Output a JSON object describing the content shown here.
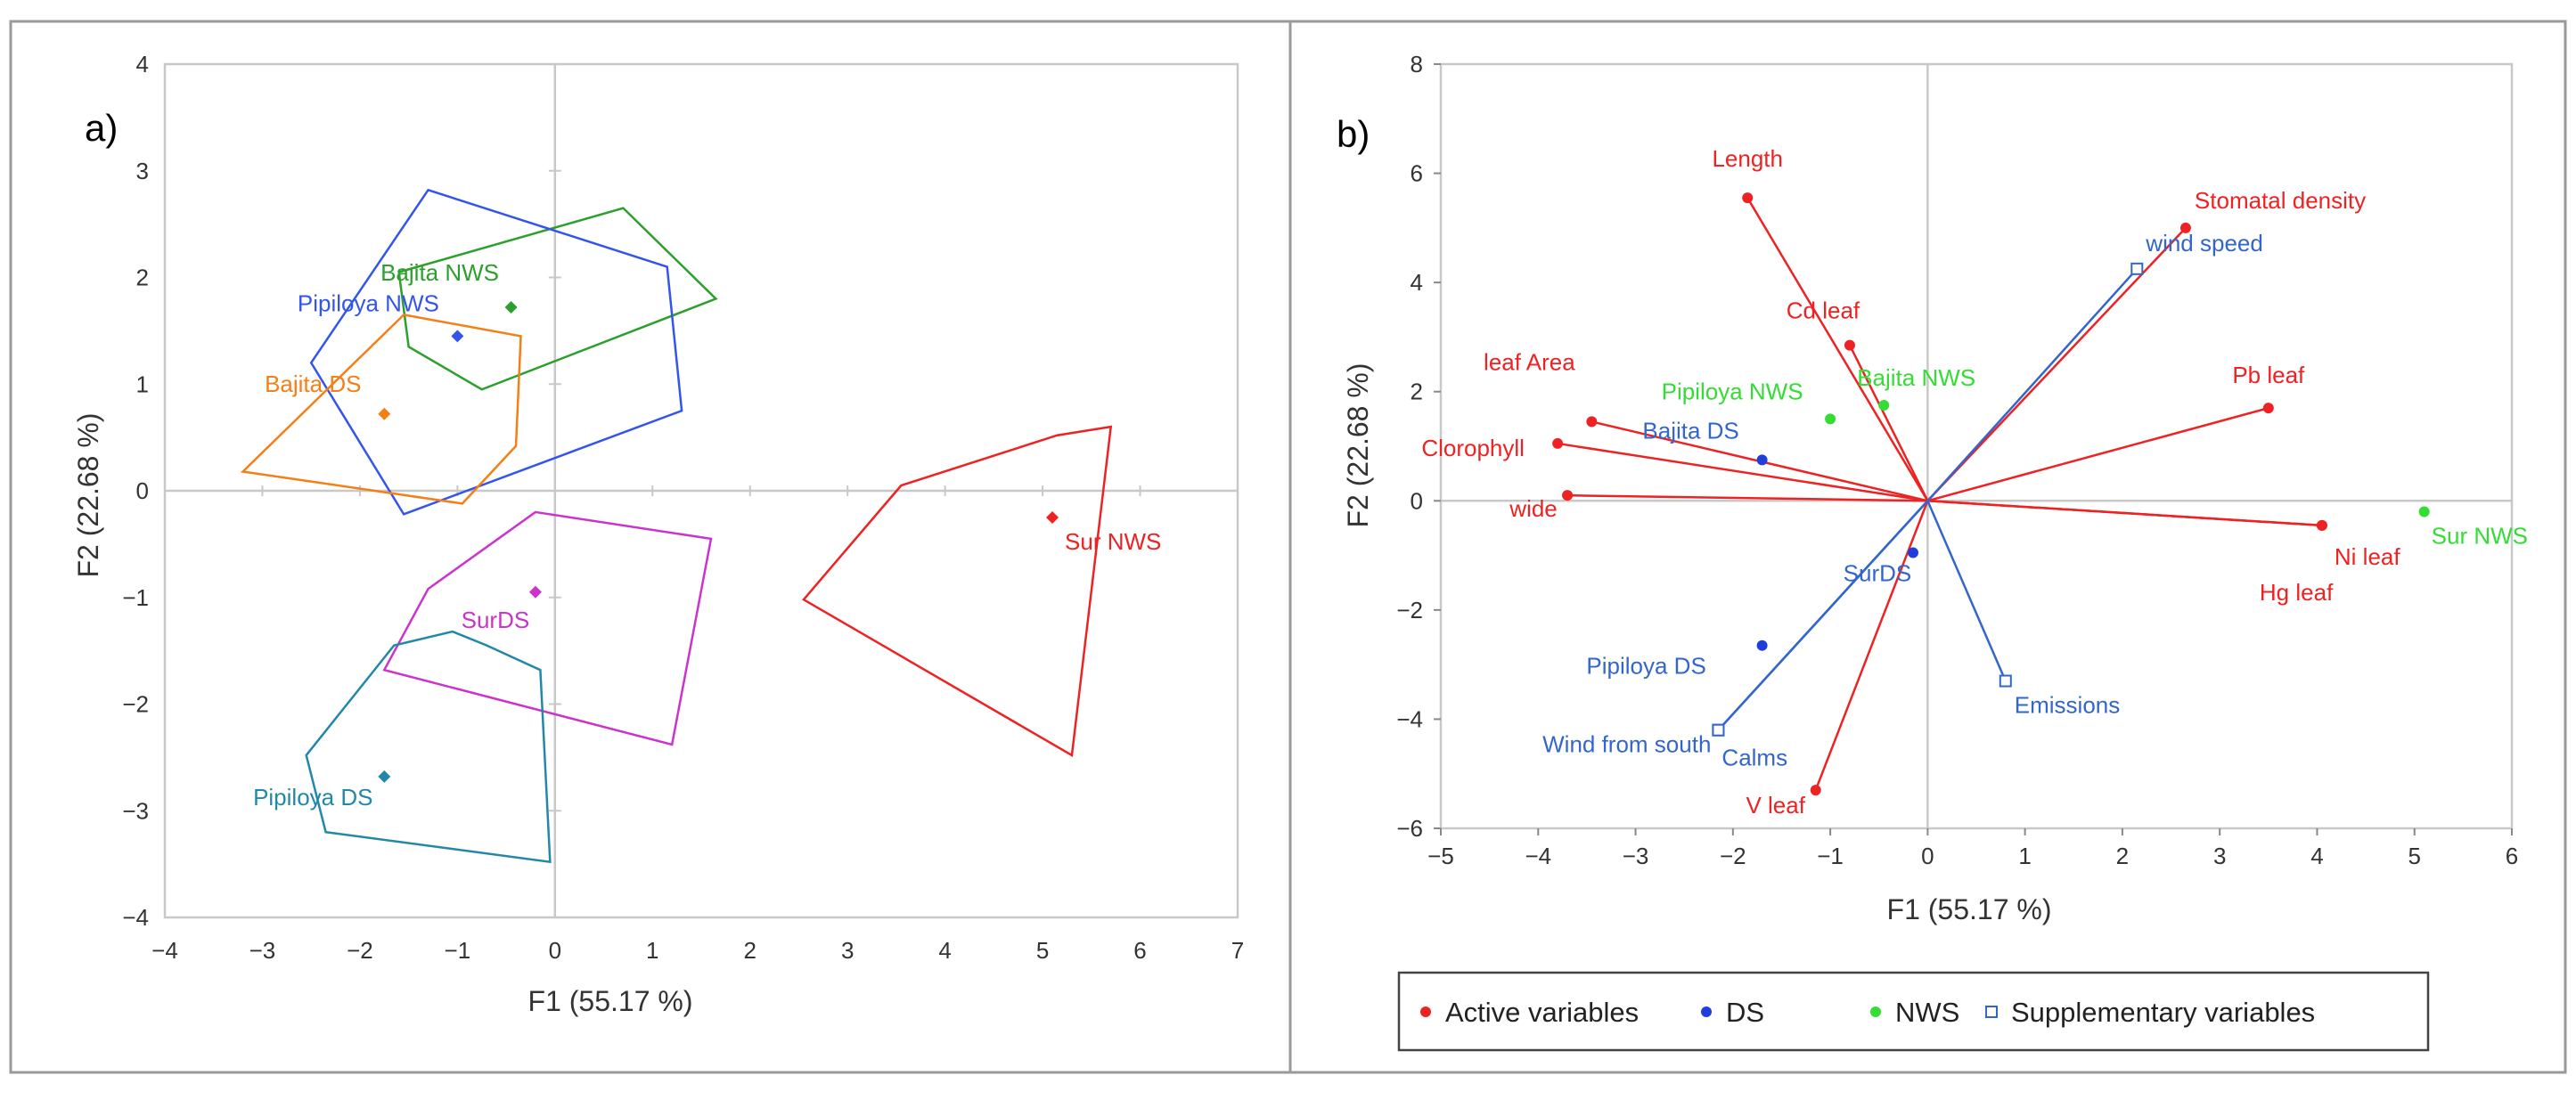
{
  "chart_data": [
    {
      "panel": "a)",
      "type": "scatter",
      "xlabel": "F1 (55.17 %)",
      "ylabel": "F2 (22.68 %)",
      "xlim": [
        -4,
        7
      ],
      "ylim": [
        -4,
        4
      ],
      "xticks": [
        "−4",
        "−3",
        "−2",
        "−1",
        "0",
        "1",
        "2",
        "3",
        "4",
        "5",
        "6",
        "7"
      ],
      "yticks": [
        "−4",
        "−3",
        "−2",
        "−1",
        "0",
        "1",
        "2",
        "3",
        "4"
      ],
      "series": [
        {
          "name": "Bajita NWS",
          "color": "#2ca02c",
          "point": [
            -0.45,
            1.72
          ],
          "hull": [
            [
              -1.6,
              2.05
            ],
            [
              0.7,
              2.65
            ],
            [
              1.65,
              1.8
            ],
            [
              -0.75,
              0.95
            ],
            [
              -1.5,
              1.35
            ]
          ]
        },
        {
          "name": "Pipiloya NWS",
          "color": "#3355ee",
          "point": [
            -1.0,
            1.45
          ],
          "hull": [
            [
              -1.3,
              2.82
            ],
            [
              1.15,
              2.1
            ],
            [
              1.3,
              0.75
            ],
            [
              -1.55,
              -0.22
            ],
            [
              -2.5,
              1.2
            ]
          ]
        },
        {
          "name": "Bajita DS",
          "color": "#f57f17",
          "point": [
            -1.75,
            0.72
          ],
          "hull": [
            [
              -1.55,
              1.65
            ],
            [
              -0.35,
              1.45
            ],
            [
              -0.4,
              0.42
            ],
            [
              -0.95,
              -0.12
            ],
            [
              -3.2,
              0.18
            ]
          ]
        },
        {
          "name": "Sur NWS",
          "color": "#ee2222",
          "point": [
            5.1,
            -0.25
          ],
          "hull": [
            [
              3.55,
              0.05
            ],
            [
              5.15,
              0.52
            ],
            [
              5.7,
              0.6
            ],
            [
              5.3,
              -2.48
            ],
            [
              2.55,
              -1.02
            ]
          ]
        },
        {
          "name": "SurDS",
          "color": "#cc33cc",
          "point": [
            -0.2,
            -0.95
          ],
          "hull": [
            [
              -0.2,
              -0.2
            ],
            [
              1.6,
              -0.45
            ],
            [
              1.2,
              -2.38
            ],
            [
              -1.75,
              -1.68
            ],
            [
              -1.3,
              -0.92
            ]
          ]
        },
        {
          "name": "Pipiloya DS",
          "color": "#2288aa",
          "point": [
            -1.75,
            -2.68
          ],
          "hull": [
            [
              -1.05,
              -1.32
            ],
            [
              -0.7,
              -1.45
            ],
            [
              -0.15,
              -1.68
            ],
            [
              -0.05,
              -3.48
            ],
            [
              -2.35,
              -3.2
            ],
            [
              -2.55,
              -2.48
            ],
            [
              -1.65,
              -1.45
            ]
          ]
        }
      ]
    },
    {
      "panel": "b)",
      "type": "scatter",
      "xlabel": "F1 (55.17 %)",
      "ylabel": "F2 (22.68 %)",
      "xlim": [
        -5,
        6
      ],
      "ylim": [
        -6,
        8
      ],
      "xticks": [
        "−5",
        "−4",
        "−3",
        "−2",
        "−1",
        "0",
        "1",
        "2",
        "3",
        "4",
        "5",
        "6"
      ],
      "yticks": [
        "−6",
        "−4",
        "−2",
        "0",
        "2",
        "4",
        "6",
        "8"
      ],
      "active_variables": [
        {
          "name": "Length",
          "x": -1.85,
          "y": 5.55
        },
        {
          "name": "Stomatal density",
          "x": 2.65,
          "y": 5.0
        },
        {
          "name": "Cd leaf",
          "x": -0.8,
          "y": 2.85
        },
        {
          "name": "leaf Area",
          "x": -3.45,
          "y": 1.45
        },
        {
          "name": "Clorophyll",
          "x": -3.8,
          "y": 1.05
        },
        {
          "name": "wide",
          "x": -3.7,
          "y": 0.1
        },
        {
          "name": "Pb leaf",
          "x": 3.5,
          "y": 1.7
        },
        {
          "name": "Ni leaf",
          "x": 4.05,
          "y": -0.45
        },
        {
          "name": "Hg leaf",
          "x": 4.05,
          "y": -0.45
        },
        {
          "name": "V leaf",
          "x": -1.15,
          "y": -5.3
        }
      ],
      "ds_points": [
        {
          "name": "Bajita DS",
          "x": -1.7,
          "y": 0.75
        },
        {
          "name": "SurDS",
          "x": -0.15,
          "y": -0.95
        },
        {
          "name": "Pipiloya DS",
          "x": -1.7,
          "y": -2.65
        }
      ],
      "nws_points": [
        {
          "name": "Pipiloya NWS",
          "x": -1.0,
          "y": 1.5
        },
        {
          "name": "Bajita NWS",
          "x": -0.45,
          "y": 1.75
        },
        {
          "name": "Sur NWS",
          "x": 5.1,
          "y": -0.2
        }
      ],
      "supplementary_variables": [
        {
          "name": "wind speed",
          "x": 2.15,
          "y": 4.25
        },
        {
          "name": "Emissions",
          "x": 0.8,
          "y": -3.3
        },
        {
          "name": "Wind from south",
          "x": -2.15,
          "y": -4.2
        },
        {
          "name": "Calms",
          "x": -2.15,
          "y": -4.2
        }
      ],
      "legend": {
        "placement": "bottom",
        "items": [
          {
            "label": "Active variables",
            "color": "#ee2222",
            "marker": "dot"
          },
          {
            "label": "DS",
            "color": "#1f3fdd",
            "marker": "dot"
          },
          {
            "label": "NWS",
            "color": "#33dd33",
            "marker": "dot"
          },
          {
            "label": "Supplementary variables",
            "color": "#3366cc",
            "marker": "square"
          }
        ]
      }
    }
  ]
}
